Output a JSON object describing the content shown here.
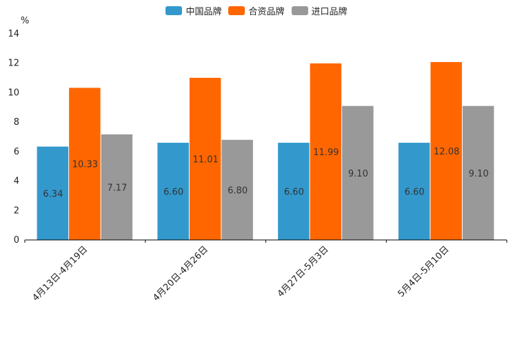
{
  "chart_data": {
    "type": "bar",
    "title": "",
    "xlabel": "",
    "ylabel": "%",
    "ylim": [
      0,
      14
    ],
    "yticks": [
      0,
      2,
      4,
      6,
      8,
      10,
      12,
      14
    ],
    "categories": [
      "4月13日-4月19日",
      "4月20日-4月26日",
      "4月27日-5月3日",
      "5月4日-5月10日"
    ],
    "series": [
      {
        "name": "中国品牌",
        "color": "#3399cc",
        "values": [
          6.34,
          6.6,
          6.6,
          6.6
        ],
        "labels": [
          "6.34",
          "6.60",
          "6.60",
          "6.60"
        ]
      },
      {
        "name": "合资品牌",
        "color": "#ff6600",
        "values": [
          10.33,
          11.01,
          11.99,
          12.08
        ],
        "labels": [
          "10.33",
          "11.01",
          "11.99",
          "12.08"
        ]
      },
      {
        "name": "进口品牌",
        "color": "#999999",
        "values": [
          7.17,
          6.8,
          9.1,
          9.1
        ],
        "labels": [
          "7.17",
          "6.80",
          "9.10",
          "9.10"
        ]
      }
    ],
    "legend_position": "top-center",
    "grid": false
  }
}
